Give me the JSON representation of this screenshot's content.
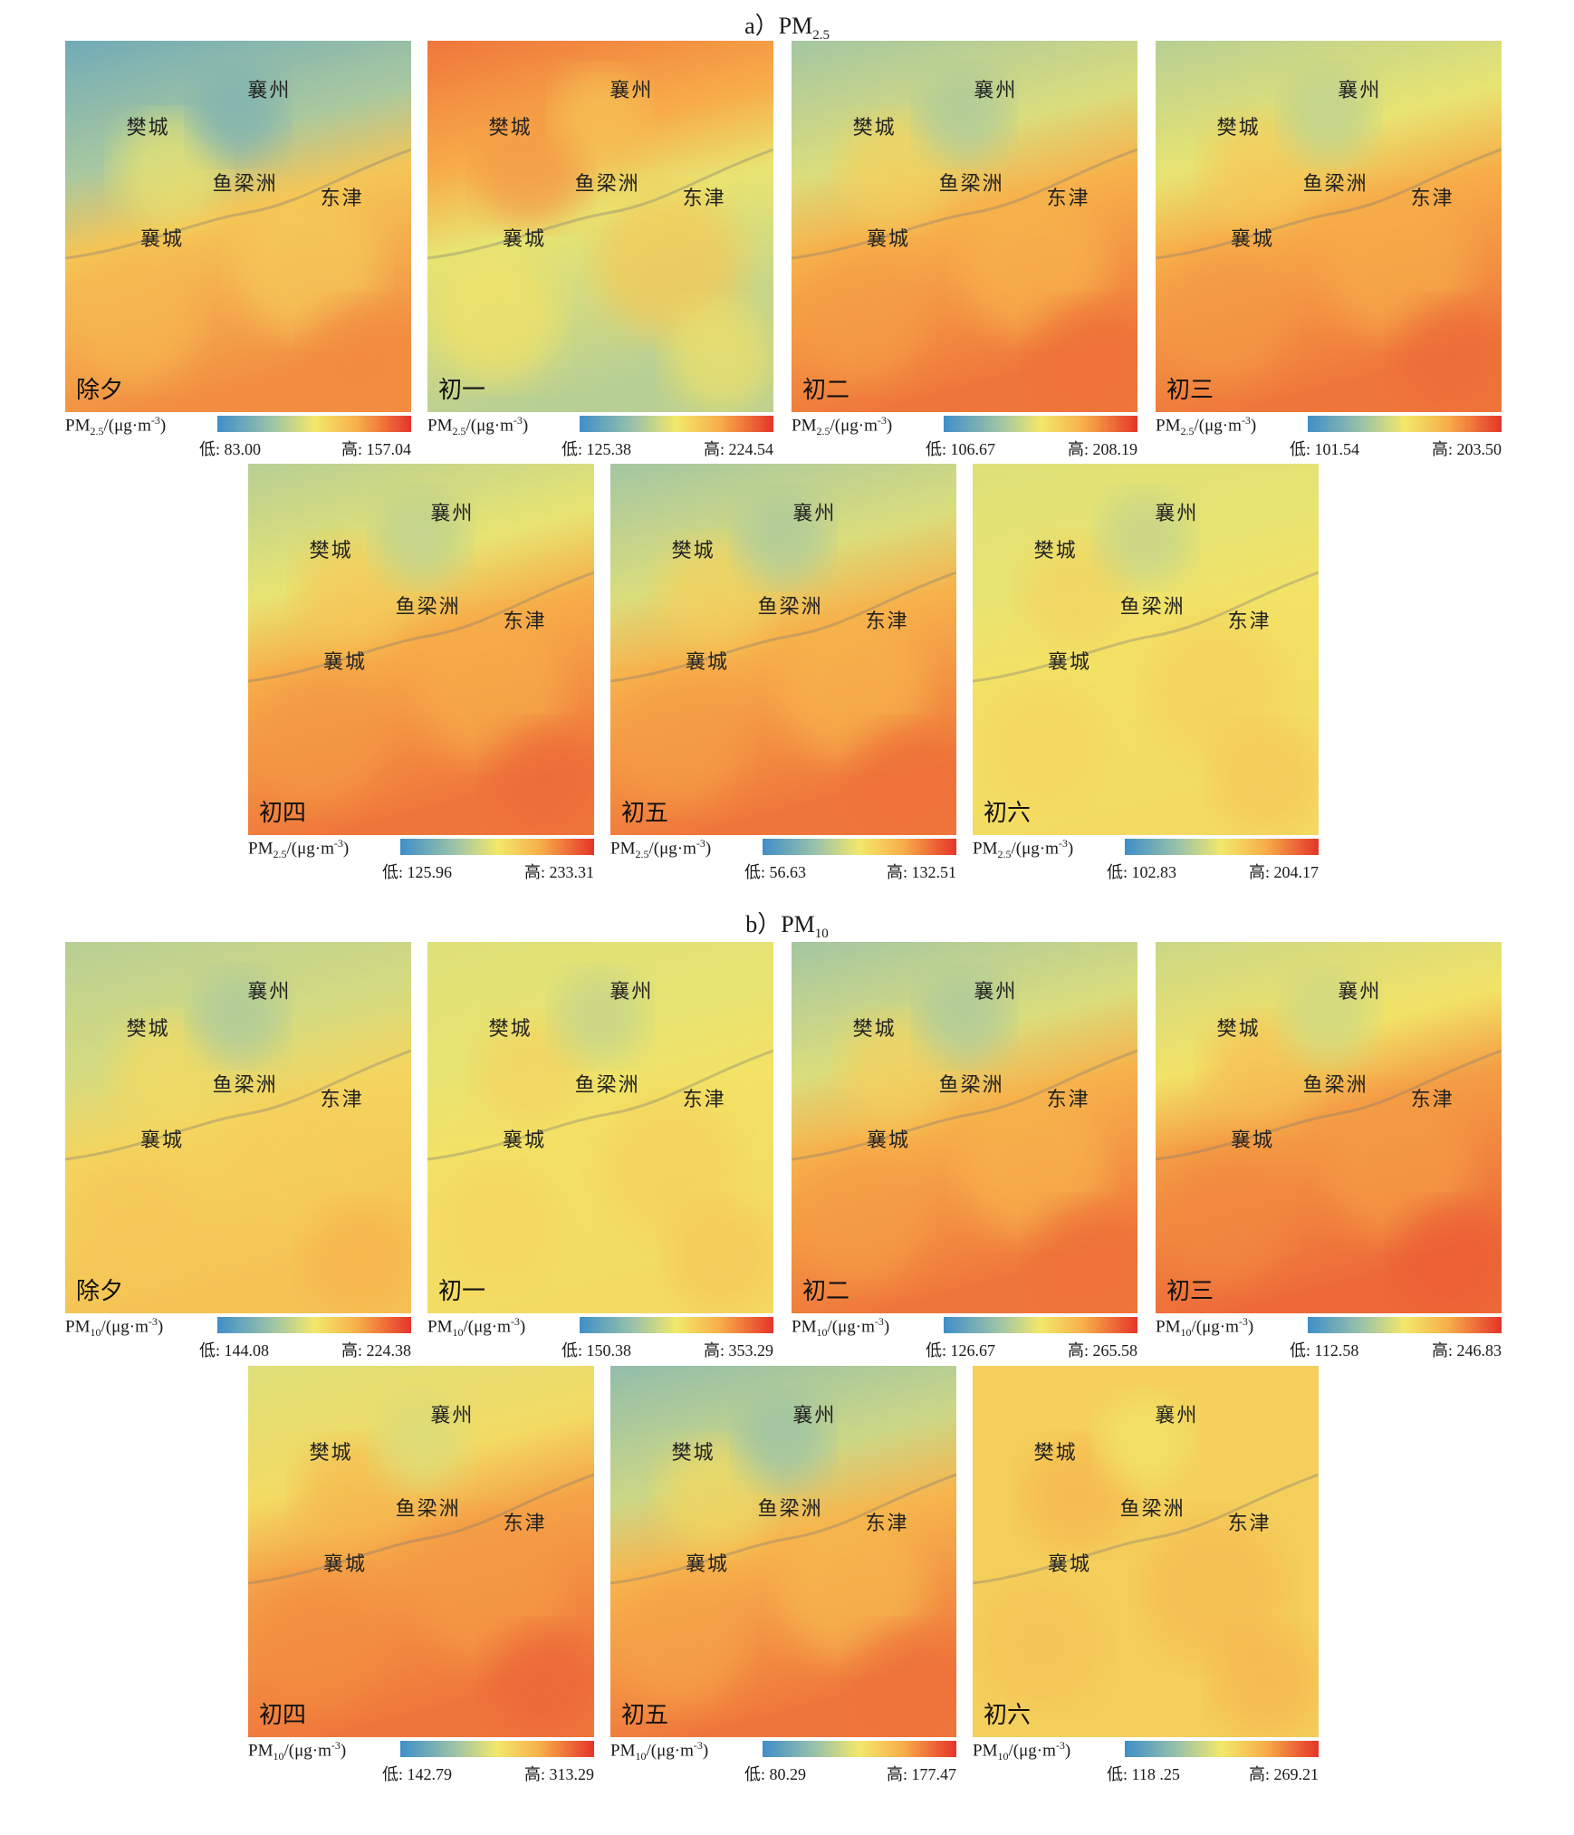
{
  "sections": [
    {
      "title_prefix": "a）PM",
      "title_sub": "2.5",
      "legend_unit_prefix": "PM",
      "legend_unit_sub": "2.5",
      "legend_unit_suffix": "/(μg·m",
      "legend_unit_sup": "-3",
      "legend_unit_close": ")",
      "panels": [
        {
          "day": "除夕",
          "low": "低: 83.00",
          "high": "高: 157.04",
          "north_level": 0.15,
          "south_level": 0.8
        },
        {
          "day": "初一",
          "low": "低: 125.38",
          "high": "高: 224.54",
          "north_level": 0.85,
          "south_level": 0.35
        },
        {
          "day": "初二",
          "low": "低: 106.67",
          "high": "高: 208.19",
          "north_level": 0.3,
          "south_level": 0.85
        },
        {
          "day": "初三",
          "low": "低: 101.54",
          "high": "高: 203.50",
          "north_level": 0.35,
          "south_level": 0.85
        },
        {
          "day": "初四",
          "low": "低: 125.96",
          "high": "高: 233.31",
          "north_level": 0.35,
          "south_level": 0.85
        },
        {
          "day": "初五",
          "low": "低: 56.63",
          "high": "高: 132.51",
          "north_level": 0.3,
          "south_level": 0.85
        },
        {
          "day": "初六",
          "low": "低: 102.83",
          "high": "高: 204.17",
          "north_level": 0.45,
          "south_level": 0.55
        }
      ]
    },
    {
      "title_prefix": "b）PM",
      "title_sub": "10",
      "legend_unit_prefix": "PM",
      "legend_unit_sub": "10",
      "legend_unit_suffix": "/(μg·m",
      "legend_unit_sup": "-3",
      "legend_unit_close": ")",
      "panels": [
        {
          "day": "除夕",
          "low": "低: 144.08",
          "high": "高: 224.38",
          "north_level": 0.35,
          "south_level": 0.65
        },
        {
          "day": "初一",
          "low": "低: 150.38",
          "high": "高: 353.29",
          "north_level": 0.45,
          "south_level": 0.55
        },
        {
          "day": "初二",
          "low": "低: 126.67",
          "high": "高: 265.58",
          "north_level": 0.3,
          "south_level": 0.85
        },
        {
          "day": "初三",
          "low": "低: 112.58",
          "high": "高: 246.83",
          "north_level": 0.4,
          "south_level": 0.88
        },
        {
          "day": "初四",
          "low": "低: 142.79",
          "high": "高: 313.29",
          "north_level": 0.45,
          "south_level": 0.85
        },
        {
          "day": "初五",
          "low": "低: 80.29",
          "high": "高: 177.47",
          "north_level": 0.25,
          "south_level": 0.85
        },
        {
          "day": "初六",
          "low": "低: 118 .25",
          "high": "高: 269.21",
          "north_level": 0.6,
          "south_level": 0.6
        }
      ]
    }
  ],
  "places": [
    "襄州",
    "樊城",
    "鱼梁洲",
    "东津",
    "襄城"
  ]
}
